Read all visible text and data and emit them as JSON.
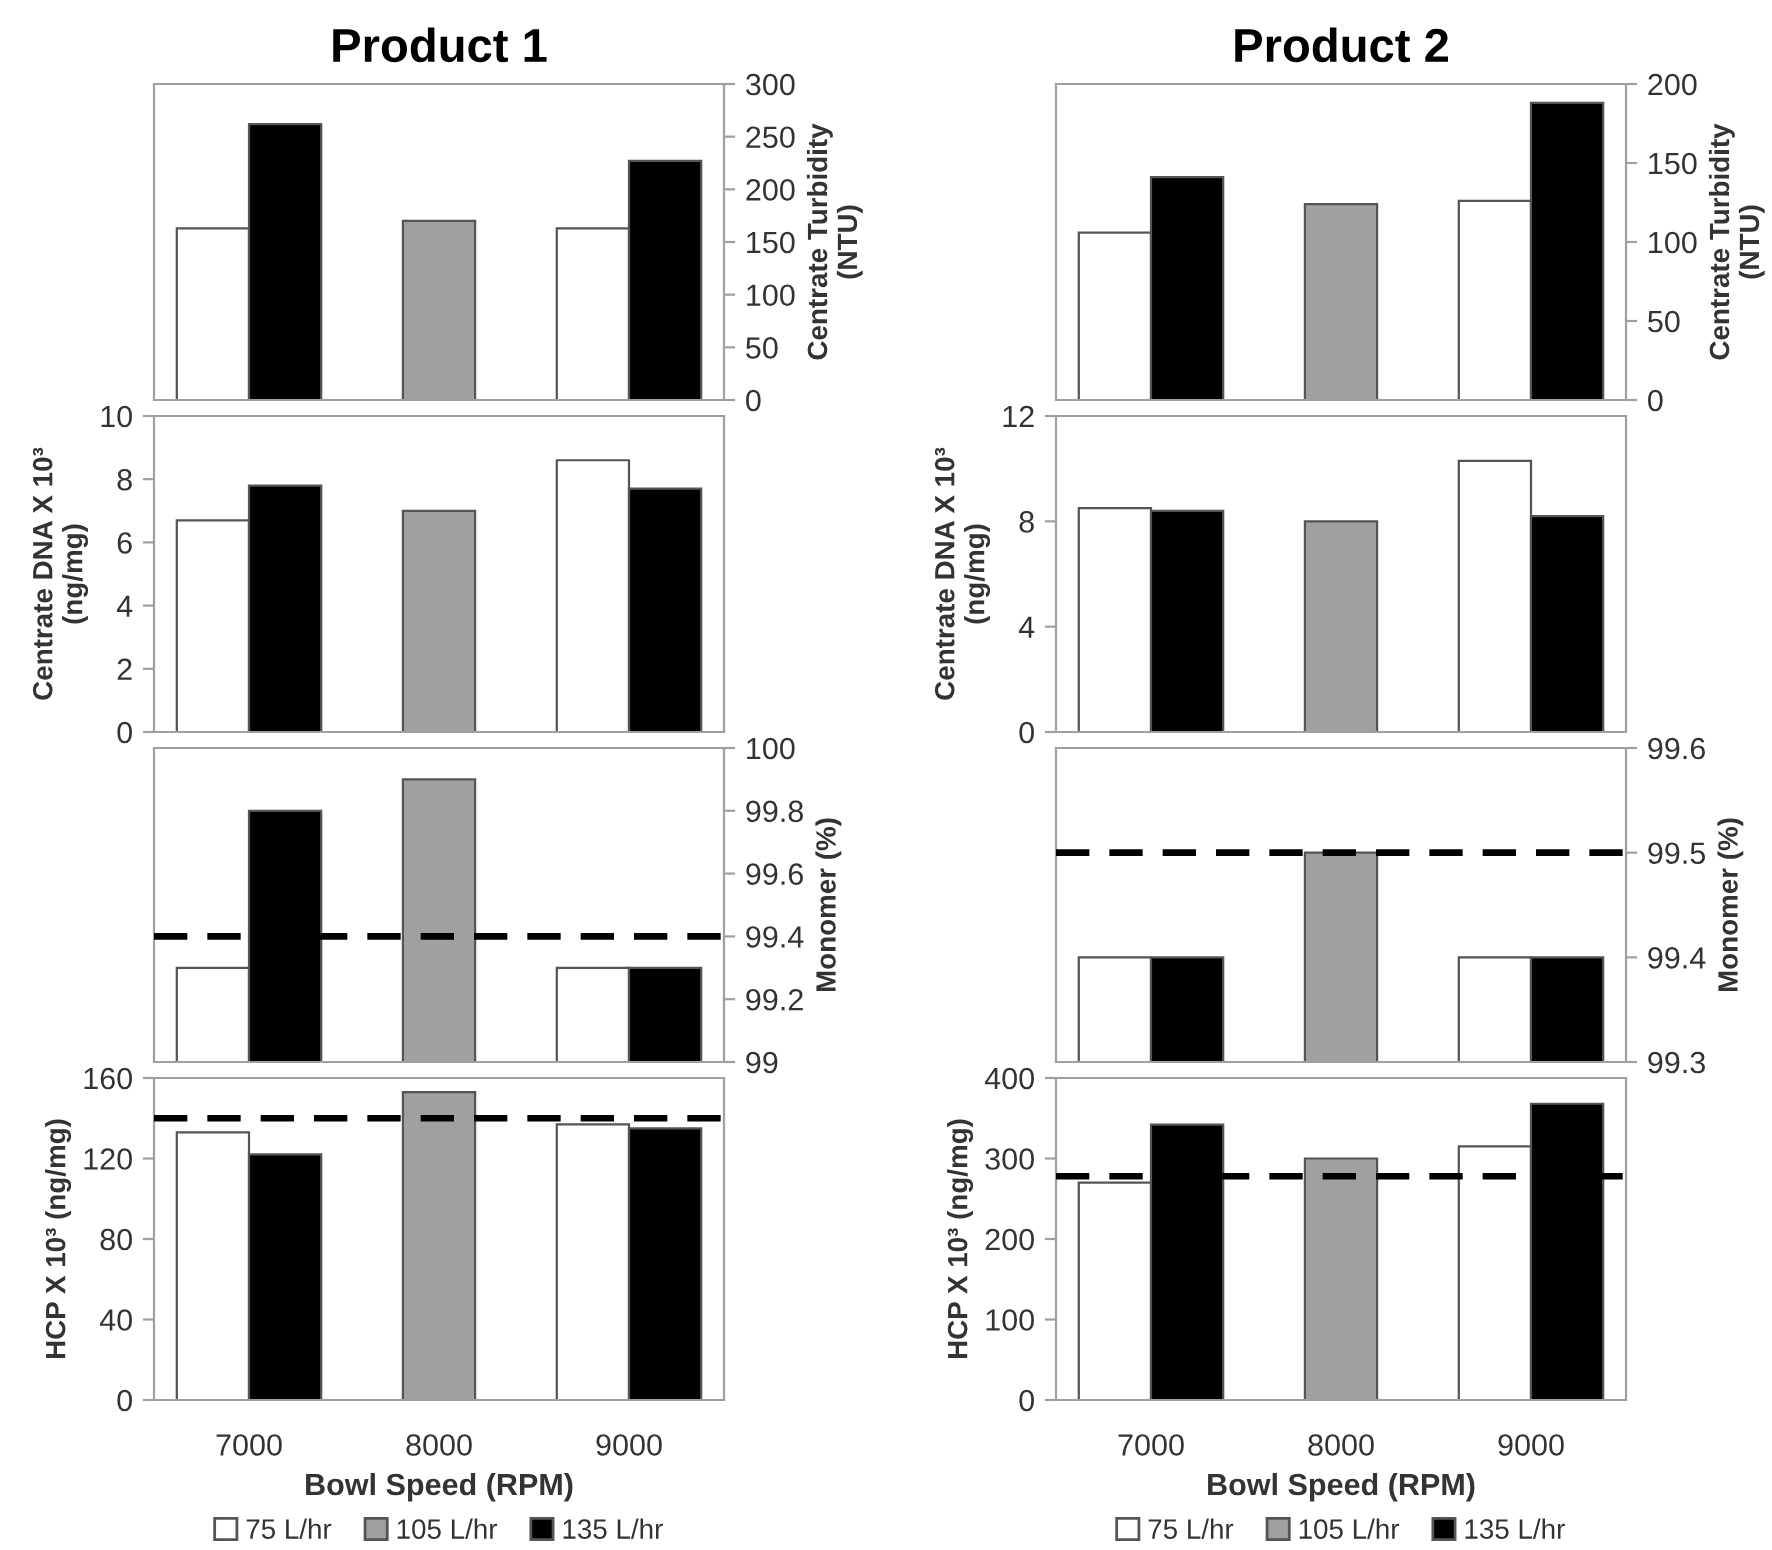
{
  "chart_data": [
    {
      "type": "bar",
      "title": "Product 1",
      "categories": [
        "7000",
        "8000",
        "9000"
      ],
      "y2label": "Centrate Turbidity\n(NTU)",
      "y2lim": [
        0,
        300
      ],
      "y2ticks": [
        0,
        50,
        100,
        150,
        200,
        250,
        300
      ],
      "tick_labels": "y",
      "series": [
        {
          "color": "#ffffff",
          "axis": "y2",
          "values": [
            163,
            null,
            163
          ]
        },
        {
          "color": "#a0a0a0",
          "axis": "y2",
          "values": [
            null,
            170,
            null
          ]
        },
        {
          "color": "#000000",
          "axis": "y2",
          "values": [
            262,
            null,
            227
          ]
        }
      ]
    },
    {
      "type": "bar",
      "categories": [
        "7000",
        "8000",
        "9000"
      ],
      "ylabel": "Centrate DNA X 10³\n(ng/mg)",
      "ylim": [
        0,
        10
      ],
      "yticks": [
        0,
        2,
        4,
        6,
        8,
        10
      ],
      "tick_labels": "y",
      "series": [
        {
          "color": "#ffffff",
          "values": [
            6.7,
            null,
            8.6
          ]
        },
        {
          "color": "#a0a0a0",
          "values": [
            null,
            7.0,
            null
          ]
        },
        {
          "color": "#000000",
          "values": [
            7.8,
            null,
            7.7
          ]
        }
      ]
    },
    {
      "type": "bar",
      "categories": [
        "7000",
        "8000",
        "9000"
      ],
      "y2label": "Monomer (%)",
      "y2lim": [
        99,
        100
      ],
      "y2ticks": [
        99,
        99.2,
        99.4,
        99.6,
        99.8,
        100
      ],
      "tick_labels": "y",
      "ref_lines": [
        {
          "axis": "y2",
          "value": 99.4,
          "color": "#000000",
          "line_style": "dashed"
        }
      ],
      "series": [
        {
          "color": "#ffffff",
          "axis": "y2",
          "values": [
            99.3,
            null,
            99.3
          ]
        },
        {
          "color": "#a0a0a0",
          "axis": "y2",
          "values": [
            null,
            99.9,
            null
          ]
        },
        {
          "color": "#000000",
          "axis": "y2",
          "values": [
            99.8,
            null,
            99.3
          ]
        }
      ]
    },
    {
      "type": "bar",
      "categories": [
        "7000",
        "8000",
        "9000"
      ],
      "ylabel": "HCP X 10³ (ng/mg)",
      "xlabel": "Bowl Speed (RPM)",
      "ylim": [
        0,
        160
      ],
      "yticks": [
        0,
        40,
        80,
        120,
        160
      ],
      "legend": "bottom",
      "ref_lines": [
        {
          "axis": "y",
          "value": 140,
          "color": "#000000",
          "line_style": "dashed"
        }
      ],
      "series": [
        {
          "name": "75 L/hr",
          "color": "#ffffff",
          "values": [
            133,
            null,
            137
          ]
        },
        {
          "name": "105 L/hr",
          "color": "#a0a0a0",
          "values": [
            null,
            153,
            null
          ]
        },
        {
          "name": "135 L/hr",
          "color": "#000000",
          "values": [
            122,
            null,
            135
          ]
        }
      ]
    },
    {
      "type": "bar",
      "title": "Product 2",
      "categories": [
        "7000",
        "8000",
        "9000"
      ],
      "y2label": "Centrate Turbidity\n(NTU)",
      "y2lim": [
        0,
        200
      ],
      "y2ticks": [
        0,
        50,
        100,
        150,
        200
      ],
      "tick_labels": "y",
      "series": [
        {
          "color": "#ffffff",
          "axis": "y2",
          "values": [
            106,
            null,
            126
          ]
        },
        {
          "color": "#a0a0a0",
          "axis": "y2",
          "values": [
            null,
            124,
            null
          ]
        },
        {
          "color": "#000000",
          "axis": "y2",
          "values": [
            141,
            null,
            188
          ]
        }
      ]
    },
    {
      "type": "bar",
      "categories": [
        "7000",
        "8000",
        "9000"
      ],
      "ylabel": "Centrate DNA X 10³\n(ng/mg)",
      "ylim": [
        0,
        12
      ],
      "yticks": [
        0,
        4,
        8,
        12
      ],
      "tick_labels": "y",
      "series": [
        {
          "color": "#ffffff",
          "values": [
            8.5,
            null,
            10.3
          ]
        },
        {
          "color": "#a0a0a0",
          "values": [
            null,
            8.0,
            null
          ]
        },
        {
          "color": "#000000",
          "values": [
            8.4,
            null,
            8.2
          ]
        }
      ]
    },
    {
      "type": "bar",
      "categories": [
        "7000",
        "8000",
        "9000"
      ],
      "y2label": "Monomer (%)",
      "y2lim": [
        99.3,
        99.6
      ],
      "y2ticks": [
        99.3,
        99.4,
        99.5,
        99.6
      ],
      "tick_labels": "y",
      "ref_lines": [
        {
          "axis": "y2",
          "value": 99.5,
          "color": "#000000",
          "line_style": "dashed"
        }
      ],
      "series": [
        {
          "color": "#ffffff",
          "axis": "y2",
          "values": [
            99.4,
            null,
            99.4
          ]
        },
        {
          "color": "#a0a0a0",
          "axis": "y2",
          "values": [
            null,
            99.5,
            null
          ]
        },
        {
          "color": "#000000",
          "axis": "y2",
          "values": [
            99.4,
            null,
            99.4
          ]
        }
      ]
    },
    {
      "type": "bar",
      "categories": [
        "7000",
        "8000",
        "9000"
      ],
      "ylabel": "HCP X 10³ (ng/mg)",
      "xlabel": "Bowl Speed (RPM)",
      "ylim": [
        0,
        400
      ],
      "yticks": [
        0,
        100,
        200,
        300,
        400
      ],
      "legend": "bottom",
      "ref_lines": [
        {
          "axis": "y",
          "value": 278,
          "color": "#000000",
          "line_style": "dashed"
        }
      ],
      "series": [
        {
          "name": "75 L/hr",
          "color": "#ffffff",
          "values": [
            270,
            null,
            315
          ]
        },
        {
          "name": "105 L/hr",
          "color": "#a0a0a0",
          "values": [
            null,
            300,
            null
          ]
        },
        {
          "name": "135 L/hr",
          "color": "#000000",
          "values": [
            342,
            null,
            368
          ]
        }
      ]
    }
  ]
}
